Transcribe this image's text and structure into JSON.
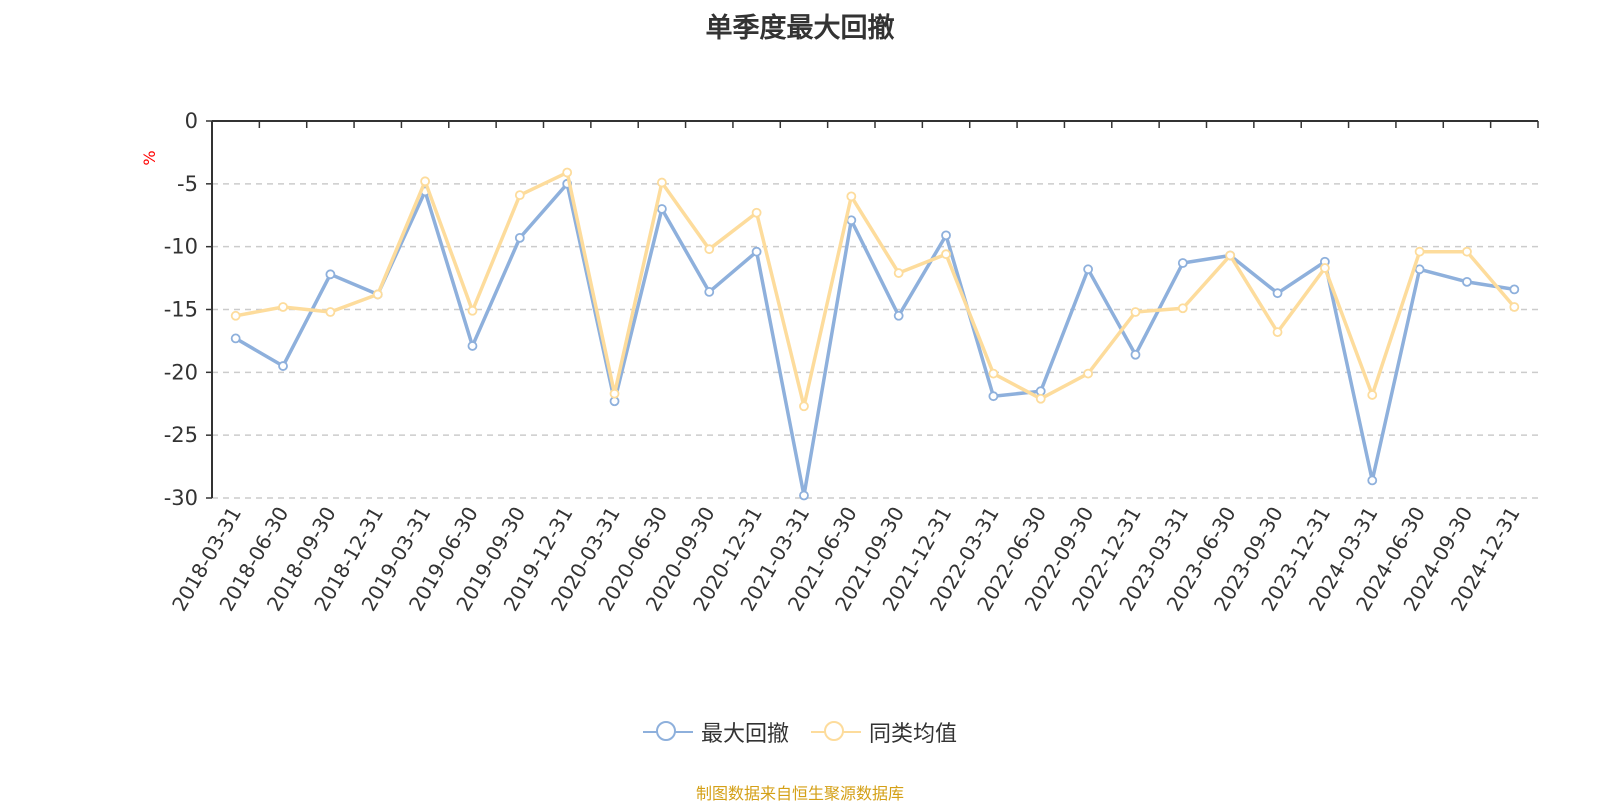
{
  "title": "单季度最大回撤",
  "source": "制图数据来自恒生聚源数据库",
  "chart_data": {
    "type": "line",
    "title": "单季度最大回撤",
    "ylabel": "%",
    "xlabel": "",
    "ylim": [
      -30,
      0
    ],
    "yticks": [
      0,
      -5,
      -10,
      -15,
      -20,
      -25,
      -30
    ],
    "grid": true,
    "legend_position": "bottom-center",
    "categories": [
      "2018-03-31",
      "2018-06-30",
      "2018-09-30",
      "2018-12-31",
      "2019-03-31",
      "2019-06-30",
      "2019-09-30",
      "2019-12-31",
      "2020-03-31",
      "2020-06-30",
      "2020-09-30",
      "2020-12-31",
      "2021-03-31",
      "2021-06-30",
      "2021-09-30",
      "2021-12-31",
      "2022-03-31",
      "2022-06-30",
      "2022-09-30",
      "2022-12-31",
      "2023-03-31",
      "2023-06-30",
      "2023-09-30",
      "2023-12-31",
      "2024-03-31",
      "2024-06-30",
      "2024-09-30",
      "2024-12-31"
    ],
    "series": [
      {
        "name": "最大回撤",
        "color": "#8eb0dc",
        "values": [
          -17.3,
          -19.5,
          -12.2,
          -13.8,
          -5.6,
          -17.9,
          -9.3,
          -5.0,
          -22.3,
          -7.0,
          -13.6,
          -10.4,
          -29.8,
          -7.9,
          -15.5,
          -9.1,
          -21.9,
          -21.5,
          -11.8,
          -18.6,
          -11.3,
          -10.7,
          -13.7,
          -11.2,
          -28.6,
          -11.8,
          -12.8,
          -13.4
        ]
      },
      {
        "name": "同类均值",
        "color": "#fddc9c",
        "values": [
          -15.5,
          -14.8,
          -15.2,
          -13.8,
          -4.8,
          -15.1,
          -5.9,
          -4.1,
          -21.7,
          -4.9,
          -10.2,
          -7.3,
          -22.7,
          -6.0,
          -12.1,
          -10.6,
          -20.1,
          -22.1,
          -20.1,
          -15.2,
          -14.9,
          -10.7,
          -16.8,
          -11.7,
          -21.8,
          -10.4,
          -10.4,
          -14.8
        ]
      }
    ]
  }
}
